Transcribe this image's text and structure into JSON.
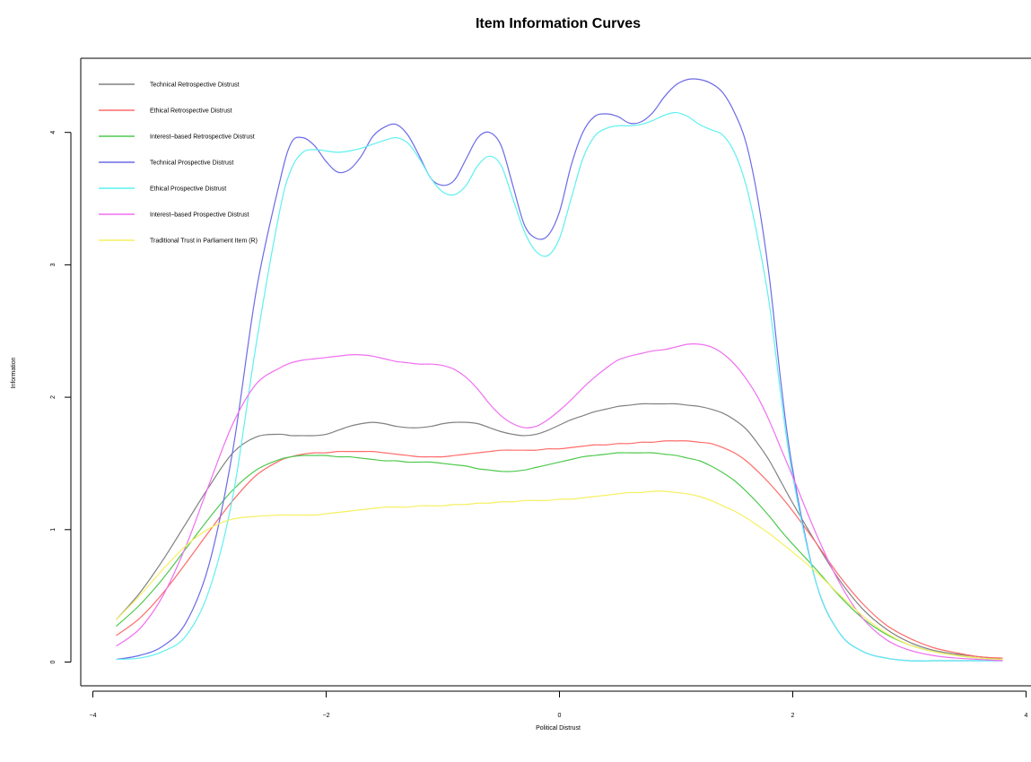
{
  "chart_data": {
    "type": "line",
    "title": "Item Information Curves",
    "xlabel": "Political Distrust",
    "ylabel": "Information",
    "xlim": [
      -4,
      4
    ],
    "ylim": [
      0,
      4.4
    ],
    "xticks": [
      -4,
      -2,
      0,
      2,
      4
    ],
    "yticks": [
      0,
      1,
      2,
      3,
      4
    ],
    "legend_position": "top-left",
    "grid": false,
    "x": [
      -3.8,
      -3.6,
      -3.4,
      -3.2,
      -3.0,
      -2.8,
      -2.6,
      -2.4,
      -2.3,
      -2.2,
      -2.1,
      -2.0,
      -1.9,
      -1.8,
      -1.7,
      -1.6,
      -1.5,
      -1.4,
      -1.3,
      -1.2,
      -1.1,
      -1.0,
      -0.9,
      -0.8,
      -0.7,
      -0.6,
      -0.5,
      -0.4,
      -0.3,
      -0.2,
      -0.1,
      0.0,
      0.1,
      0.2,
      0.3,
      0.4,
      0.5,
      0.6,
      0.7,
      0.8,
      0.9,
      1.0,
      1.1,
      1.2,
      1.3,
      1.4,
      1.5,
      1.6,
      1.7,
      1.8,
      1.9,
      2.0,
      2.2,
      2.4,
      2.6,
      2.8,
      3.0,
      3.2,
      3.4,
      3.6,
      3.8
    ],
    "series": [
      {
        "name": "Technical Retrospective Distrust",
        "color": "#808080",
        "values": [
          0.32,
          0.52,
          0.77,
          1.05,
          1.33,
          1.58,
          1.7,
          1.72,
          1.71,
          1.71,
          1.71,
          1.72,
          1.75,
          1.78,
          1.8,
          1.81,
          1.8,
          1.78,
          1.77,
          1.77,
          1.78,
          1.8,
          1.81,
          1.81,
          1.8,
          1.77,
          1.74,
          1.72,
          1.71,
          1.72,
          1.75,
          1.79,
          1.83,
          1.86,
          1.89,
          1.91,
          1.93,
          1.94,
          1.95,
          1.95,
          1.95,
          1.95,
          1.94,
          1.93,
          1.91,
          1.88,
          1.83,
          1.76,
          1.65,
          1.52,
          1.36,
          1.2,
          0.9,
          0.62,
          0.4,
          0.25,
          0.15,
          0.09,
          0.06,
          0.04,
          0.02
        ]
      },
      {
        "name": "Ethical Retrospective Distrust",
        "color": "#ff6b6b",
        "values": [
          0.2,
          0.33,
          0.52,
          0.75,
          0.99,
          1.22,
          1.41,
          1.52,
          1.55,
          1.57,
          1.58,
          1.58,
          1.59,
          1.59,
          1.59,
          1.59,
          1.58,
          1.57,
          1.56,
          1.55,
          1.55,
          1.55,
          1.56,
          1.57,
          1.58,
          1.59,
          1.6,
          1.6,
          1.6,
          1.6,
          1.61,
          1.61,
          1.62,
          1.63,
          1.64,
          1.64,
          1.65,
          1.65,
          1.66,
          1.66,
          1.67,
          1.67,
          1.67,
          1.66,
          1.65,
          1.62,
          1.58,
          1.52,
          1.44,
          1.35,
          1.25,
          1.14,
          0.9,
          0.65,
          0.44,
          0.28,
          0.18,
          0.11,
          0.07,
          0.04,
          0.03
        ]
      },
      {
        "name": "Interest–based Retrospective Distrust",
        "color": "#4fc94f",
        "values": [
          0.27,
          0.43,
          0.63,
          0.86,
          1.09,
          1.3,
          1.45,
          1.53,
          1.55,
          1.56,
          1.56,
          1.56,
          1.55,
          1.55,
          1.54,
          1.53,
          1.52,
          1.52,
          1.51,
          1.51,
          1.51,
          1.5,
          1.49,
          1.48,
          1.46,
          1.45,
          1.44,
          1.44,
          1.45,
          1.47,
          1.49,
          1.51,
          1.53,
          1.55,
          1.56,
          1.57,
          1.58,
          1.58,
          1.58,
          1.58,
          1.57,
          1.56,
          1.54,
          1.52,
          1.48,
          1.43,
          1.37,
          1.29,
          1.2,
          1.1,
          0.99,
          0.89,
          0.7,
          0.5,
          0.33,
          0.21,
          0.13,
          0.08,
          0.05,
          0.03,
          0.02
        ]
      },
      {
        "name": "Technical Prospective Distrust",
        "color": "#6a6ae8",
        "values": [
          0.02,
          0.05,
          0.12,
          0.3,
          0.75,
          1.6,
          2.8,
          3.62,
          3.92,
          3.96,
          3.9,
          3.78,
          3.7,
          3.72,
          3.82,
          3.97,
          4.04,
          4.06,
          3.98,
          3.82,
          3.65,
          3.6,
          3.64,
          3.8,
          3.96,
          4.0,
          3.9,
          3.6,
          3.3,
          3.2,
          3.22,
          3.4,
          3.75,
          4.0,
          4.12,
          4.14,
          4.12,
          4.07,
          4.08,
          4.15,
          4.27,
          4.36,
          4.4,
          4.4,
          4.37,
          4.3,
          4.15,
          3.92,
          3.5,
          2.9,
          2.1,
          1.45,
          0.6,
          0.22,
          0.08,
          0.03,
          0.01,
          0.01,
          0.01,
          0.01,
          0.01
        ]
      },
      {
        "name": "Ethical Prospective Distrust",
        "color": "#5ff0f0",
        "values": [
          0.02,
          0.03,
          0.08,
          0.2,
          0.55,
          1.25,
          2.4,
          3.4,
          3.72,
          3.85,
          3.87,
          3.86,
          3.85,
          3.86,
          3.88,
          3.91,
          3.94,
          3.96,
          3.92,
          3.8,
          3.65,
          3.55,
          3.53,
          3.6,
          3.75,
          3.82,
          3.75,
          3.5,
          3.25,
          3.1,
          3.07,
          3.2,
          3.5,
          3.8,
          3.97,
          4.03,
          4.05,
          4.05,
          4.06,
          4.09,
          4.13,
          4.15,
          4.12,
          4.06,
          4.02,
          3.98,
          3.85,
          3.6,
          3.2,
          2.7,
          2.0,
          1.4,
          0.6,
          0.22,
          0.08,
          0.03,
          0.01,
          0.01,
          0.01,
          0.01,
          0.01
        ]
      },
      {
        "name": "Interest–based Prospective Distrust",
        "color": "#f06ef0",
        "values": [
          0.12,
          0.25,
          0.5,
          0.88,
          1.35,
          1.8,
          2.1,
          2.22,
          2.26,
          2.28,
          2.29,
          2.3,
          2.31,
          2.32,
          2.32,
          2.31,
          2.29,
          2.27,
          2.26,
          2.25,
          2.25,
          2.24,
          2.21,
          2.15,
          2.06,
          1.95,
          1.86,
          1.8,
          1.77,
          1.78,
          1.83,
          1.9,
          1.98,
          2.07,
          2.15,
          2.22,
          2.28,
          2.31,
          2.33,
          2.35,
          2.36,
          2.38,
          2.4,
          2.4,
          2.38,
          2.33,
          2.25,
          2.14,
          2.0,
          1.82,
          1.61,
          1.4,
          0.97,
          0.6,
          0.33,
          0.17,
          0.09,
          0.05,
          0.03,
          0.02,
          0.01
        ]
      },
      {
        "name": "Traditional Trust in Parliament Item (R)",
        "color": "#f5f060",
        "values": [
          0.32,
          0.5,
          0.7,
          0.88,
          1.01,
          1.08,
          1.1,
          1.11,
          1.11,
          1.11,
          1.11,
          1.12,
          1.13,
          1.14,
          1.15,
          1.16,
          1.17,
          1.17,
          1.17,
          1.18,
          1.18,
          1.18,
          1.19,
          1.19,
          1.2,
          1.2,
          1.21,
          1.21,
          1.22,
          1.22,
          1.22,
          1.23,
          1.23,
          1.24,
          1.25,
          1.26,
          1.27,
          1.28,
          1.28,
          1.29,
          1.29,
          1.28,
          1.27,
          1.25,
          1.22,
          1.18,
          1.14,
          1.09,
          1.03,
          0.97,
          0.9,
          0.83,
          0.68,
          0.51,
          0.35,
          0.22,
          0.13,
          0.08,
          0.05,
          0.03,
          0.02
        ]
      }
    ]
  }
}
